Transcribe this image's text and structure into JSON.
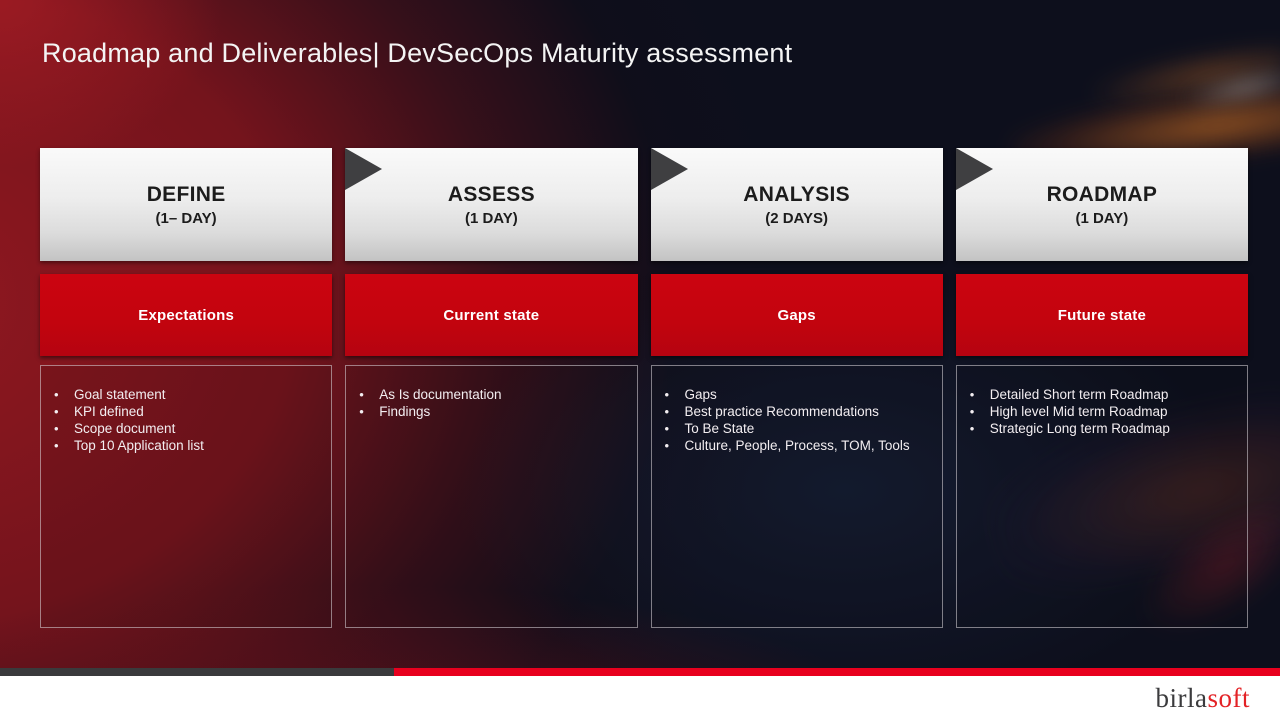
{
  "slide": {
    "title": "Roadmap and Deliverables| DevSecOps Maturity assessment"
  },
  "columns": [
    {
      "stage": "DEFINE",
      "duration": "(1– DAY)",
      "banner": "Expectations",
      "bullets": [
        "Goal statement",
        "KPI defined",
        "Scope document",
        "Top 10 Application list"
      ]
    },
    {
      "stage": "ASSESS",
      "duration": "(1 DAY)",
      "banner": "Current state",
      "bullets": [
        "As Is documentation",
        "Findings"
      ]
    },
    {
      "stage": "ANALYSIS",
      "duration": "(2 DAYS)",
      "banner": "Gaps",
      "bullets": [
        "Gaps",
        "Best practice Recommendations",
        "To Be State",
        "Culture, People, Process, TOM, Tools"
      ]
    },
    {
      "stage": "ROADMAP",
      "duration": "(1 DAY)",
      "banner": "Future state",
      "bullets": [
        "Detailed Short term Roadmap",
        "High level Mid term Roadmap",
        "Strategic Long term Roadmap"
      ]
    }
  ],
  "footer": {
    "logo_prefix": "birla",
    "logo_suffix": "soft"
  },
  "colors": {
    "banner_red": "#c2040e",
    "bottom_bar_red": "#e8001e",
    "bottom_bar_gray": "#3a3a3c",
    "arrow_gray": "#3f3f41",
    "background_maroon": "#7d141c",
    "background_dark": "#0d0f1c",
    "logo_gray": "#3b3b3d",
    "logo_red": "#e32226"
  }
}
